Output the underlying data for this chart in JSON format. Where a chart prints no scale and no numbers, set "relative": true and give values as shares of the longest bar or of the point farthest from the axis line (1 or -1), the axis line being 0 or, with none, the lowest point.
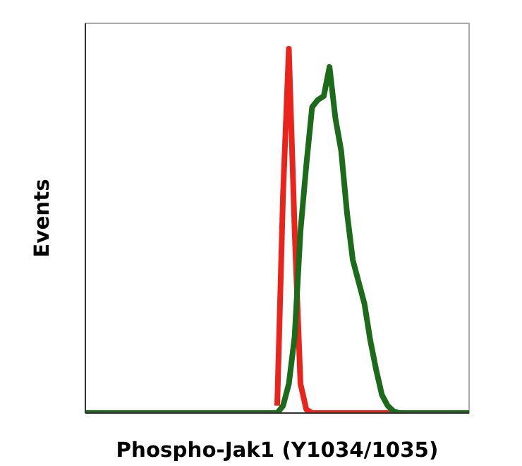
{
  "chart_data": {
    "type": "line",
    "relative": true,
    "xlabel": "Phospho-Jak1 (Y1034/1035)",
    "ylabel": "Events",
    "marker": "none",
    "line_style": "solid",
    "categories": [
      null,
      null,
      null,
      null,
      null,
      null,
      null,
      null,
      null,
      null,
      null,
      null,
      null,
      null,
      null,
      null,
      null,
      null,
      null,
      null,
      null,
      null,
      null,
      null,
      null,
      null,
      null,
      null,
      null,
      null,
      null,
      null,
      null,
      null,
      null,
      null,
      null,
      null,
      null,
      null,
      null,
      null,
      null,
      null,
      null,
      null,
      null,
      null,
      null,
      null,
      null,
      null,
      null,
      null,
      null,
      null,
      null,
      null,
      null,
      null,
      null,
      null,
      null,
      null,
      null,
      null,
      null
    ],
    "series": [
      {
        "color": "#e8241c",
        "values": [
          null,
          null,
          null,
          null,
          null,
          null,
          null,
          null,
          null,
          null,
          null,
          null,
          null,
          null,
          null,
          null,
          null,
          null,
          null,
          null,
          null,
          null,
          null,
          null,
          null,
          null,
          null,
          null,
          null,
          null,
          null,
          null,
          null,
          0.02,
          0.6,
          1,
          0.5,
          0.08,
          0.01,
          0,
          0,
          0,
          0,
          0,
          0,
          0,
          0,
          0,
          0,
          0,
          0,
          0,
          0,
          0,
          null,
          null,
          null,
          null,
          null,
          null,
          null,
          null,
          null,
          null,
          null,
          null,
          null
        ]
      },
      {
        "color": "#1b6b1b",
        "values": [
          0,
          0,
          0,
          0,
          0,
          0,
          0,
          0,
          0,
          0,
          0,
          0,
          0,
          0,
          0,
          0,
          0,
          0,
          0,
          0,
          0,
          0,
          0,
          0,
          0,
          0,
          0,
          0,
          0,
          0,
          0,
          0,
          0,
          0,
          0.02,
          0.08,
          0.21,
          0.5,
          0.68,
          0.84,
          0.86,
          0.87,
          0.95,
          0.81,
          0.72,
          0.55,
          0.42,
          0.36,
          0.3,
          0.2,
          0.12,
          0.05,
          0.02,
          0.005,
          0,
          0,
          0,
          0,
          0,
          0,
          0,
          0,
          0,
          0,
          0,
          0,
          0
        ]
      }
    ]
  }
}
